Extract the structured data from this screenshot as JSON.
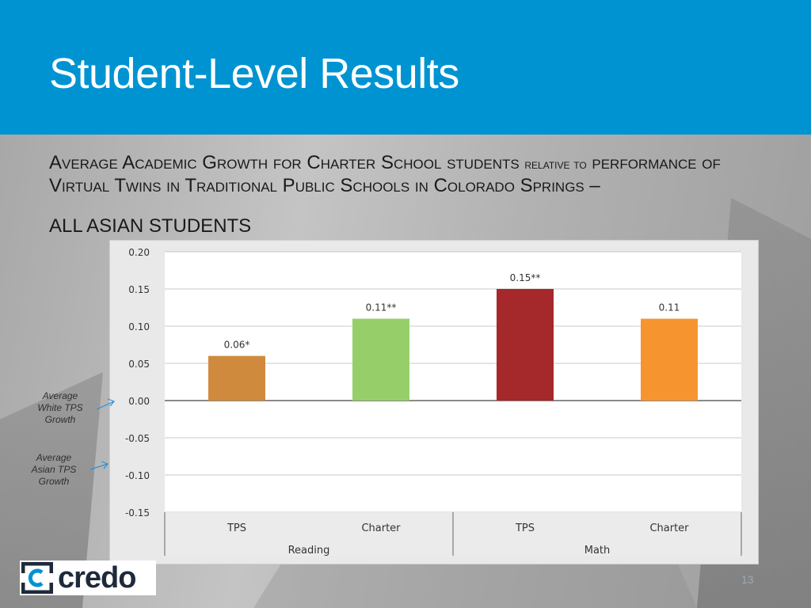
{
  "slide": {
    "title": "Student-Level Results",
    "subtitle_part1": "Average Academic Growth for Charter School students",
    "subtitle_small": "relative to",
    "subtitle_part2": "performance of Virtual Twins in Traditional Public Schools in Colorado Springs –",
    "subtitle_line2": "ALL ASIAN STUDENTS",
    "page_number": "13"
  },
  "annotations": {
    "white_tps": [
      "Average",
      "White TPS",
      "Growth"
    ],
    "asian_tps": [
      "Average",
      "Asian TPS",
      "Growth"
    ]
  },
  "logo": {
    "text": "credo"
  },
  "colors": {
    "header": "#0093d1",
    "bar_reading_tps": "#d08a3e",
    "bar_reading_charter": "#96cf6a",
    "bar_math_tps": "#a5282a",
    "bar_math_charter": "#f6952f",
    "arrow": "#2b8fd6"
  },
  "chart_data": {
    "type": "bar",
    "categories": [
      "TPS",
      "Charter",
      "TPS",
      "Charter"
    ],
    "groups": [
      "Reading",
      "Math"
    ],
    "values": [
      0.06,
      0.11,
      0.15,
      0.11
    ],
    "data_labels": [
      "0.06*",
      "0.11**",
      "0.15**",
      "0.11"
    ],
    "y_ticks": [
      "0.20",
      "0.15",
      "0.10",
      "0.05",
      "0.00",
      "-0.05",
      "-0.10",
      "-0.15"
    ],
    "ylim": [
      -0.15,
      0.2
    ],
    "grid": true
  }
}
